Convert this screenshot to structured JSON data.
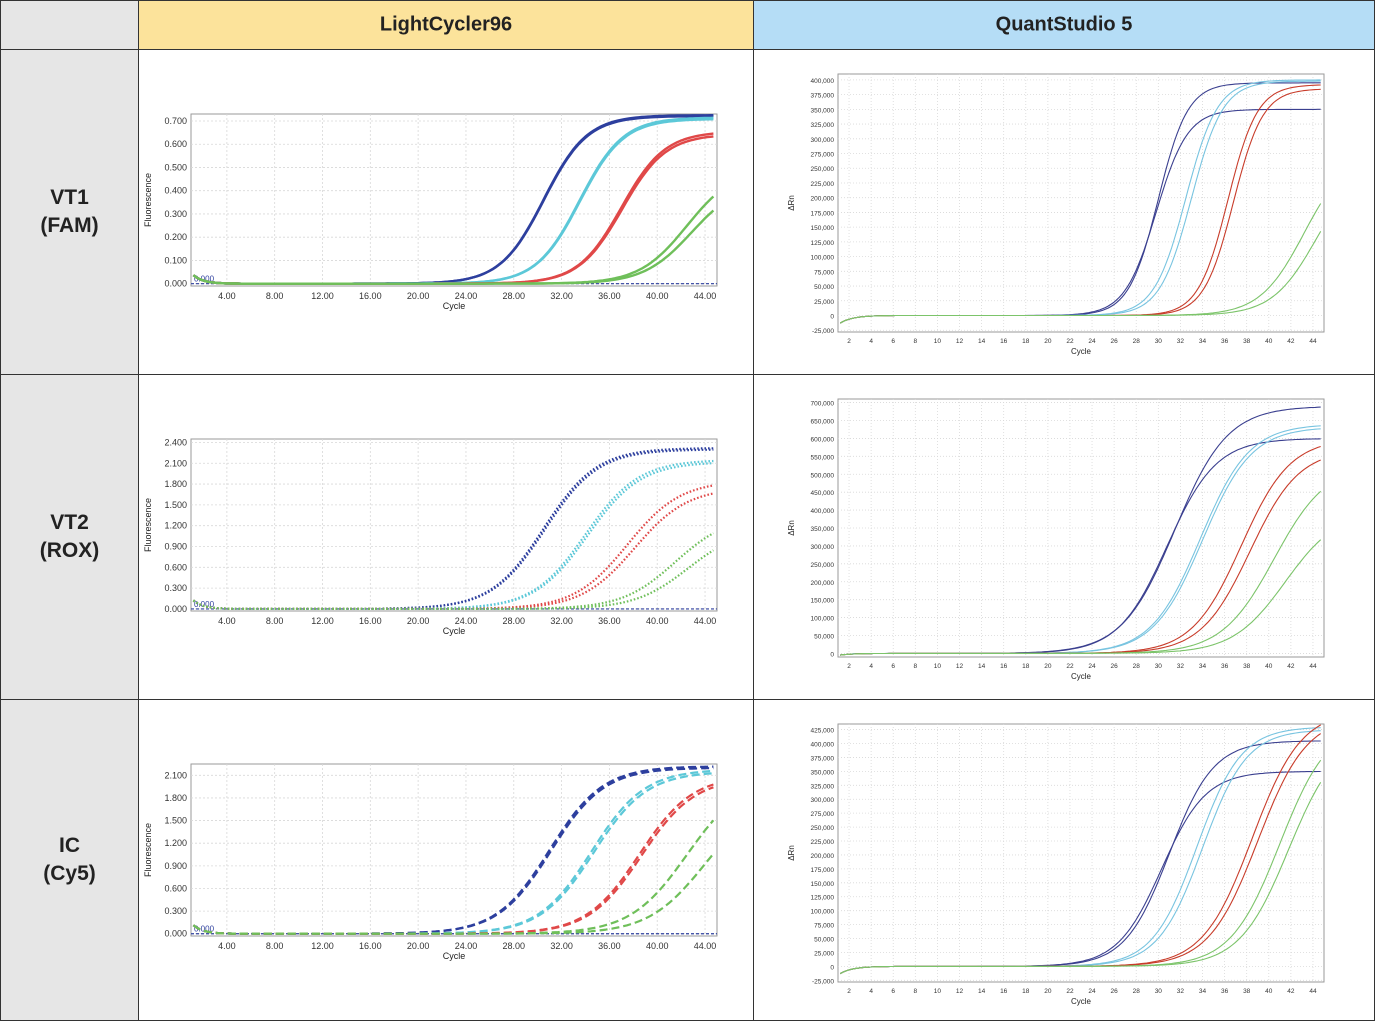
{
  "header": {
    "blank": "",
    "col1": "LightCycler96",
    "col2": "QuantStudio 5"
  },
  "rows": [
    {
      "line1": "VT1",
      "line2": "(FAM)"
    },
    {
      "line1": "VT2",
      "line2": "(ROX)"
    },
    {
      "line1": "IC",
      "line2": "(Cy5)"
    }
  ],
  "colors": {
    "dark_blue": "#2d3f9e",
    "cyan": "#5cc8d8",
    "red": "#e04848",
    "green": "#6fbf5a",
    "qs_navy": "#3a3f8f",
    "qs_lightblue": "#78c4e0",
    "qs_red": "#c83c2a",
    "qs_green": "#7cc46a"
  },
  "chart_data": [
    {
      "id": "lc-vt1",
      "type": "line",
      "style": "solid",
      "ylabel": "Fluorescence",
      "xlabel": "Cycle",
      "xticks": [
        "4.00",
        "8.00",
        "12.00",
        "16.00",
        "20.00",
        "24.00",
        "28.00",
        "32.00",
        "36.00",
        "40.00",
        "44.00"
      ],
      "yticks": [
        "0.000",
        "0.100",
        "0.200",
        "0.300",
        "0.400",
        "0.500",
        "0.600",
        "0.700"
      ],
      "xlim": [
        1,
        45
      ],
      "ylim": [
        -0.01,
        0.73
      ],
      "baseline_label": "0.000",
      "series": [
        {
          "color": "dark_blue",
          "plateau": 0.725,
          "mid": 30.5,
          "k": 0.55,
          "dup": 0.004
        },
        {
          "color": "cyan",
          "plateau": 0.715,
          "mid": 33.5,
          "k": 0.55,
          "dup": 0.006
        },
        {
          "color": "red",
          "plateau": 0.655,
          "mid": 37.0,
          "k": 0.55,
          "dup": 0.012
        },
        {
          "color": "green",
          "plateau": 0.5,
          "mid": 42.5,
          "k": 0.5,
          "dup": 0.06
        }
      ]
    },
    {
      "id": "lc-vt2",
      "type": "line",
      "style": "dotted",
      "ylabel": "Fluorescence",
      "xlabel": "Cycle",
      "xticks": [
        "4.00",
        "8.00",
        "12.00",
        "16.00",
        "20.00",
        "24.00",
        "28.00",
        "32.00",
        "36.00",
        "40.00",
        "44.00"
      ],
      "yticks": [
        "0.000",
        "0.300",
        "0.600",
        "0.900",
        "1.200",
        "1.500",
        "1.800",
        "2.100",
        "2.400"
      ],
      "xlim": [
        1,
        45
      ],
      "ylim": [
        -0.03,
        2.45
      ],
      "baseline_label": "0.000",
      "series": [
        {
          "color": "dark_blue",
          "plateau": 2.32,
          "mid": 30.5,
          "k": 0.45,
          "dup": 0.02
        },
        {
          "color": "cyan",
          "plateau": 2.15,
          "mid": 34.0,
          "k": 0.45,
          "dup": 0.03
        },
        {
          "color": "red",
          "plateau": 1.85,
          "mid": 37.5,
          "k": 0.45,
          "dup": 0.1
        },
        {
          "color": "green",
          "plateau": 1.35,
          "mid": 41.5,
          "k": 0.45,
          "dup": 0.18
        }
      ]
    },
    {
      "id": "lc-ic",
      "type": "line",
      "style": "dashed",
      "ylabel": "Fluorescence",
      "xlabel": "Cycle",
      "xticks": [
        "4.00",
        "8.00",
        "12.00",
        "16.00",
        "20.00",
        "24.00",
        "28.00",
        "32.00",
        "36.00",
        "40.00",
        "44.00"
      ],
      "yticks": [
        "0.000",
        "0.300",
        "0.600",
        "0.900",
        "1.200",
        "1.500",
        "1.800",
        "2.100"
      ],
      "xlim": [
        1,
        45
      ],
      "ylim": [
        -0.03,
        2.25
      ],
      "baseline_label": "0.000",
      "series": [
        {
          "color": "dark_blue",
          "plateau": 2.22,
          "mid": 31.0,
          "k": 0.45,
          "dup": 0.02
        },
        {
          "color": "cyan",
          "plateau": 2.18,
          "mid": 34.5,
          "k": 0.45,
          "dup": 0.03
        },
        {
          "color": "red",
          "plateau": 2.1,
          "mid": 38.5,
          "k": 0.45,
          "dup": 0.03
        },
        {
          "color": "green",
          "plateau": 2.1,
          "mid": 42.5,
          "k": 0.42,
          "dup": 0.25
        }
      ]
    },
    {
      "id": "qs-vt1",
      "type": "line",
      "style": "solid",
      "ylabel": "ΔRn",
      "xlabel": "Cycle",
      "xticks": [
        "2",
        "4",
        "6",
        "8",
        "10",
        "12",
        "14",
        "16",
        "18",
        "20",
        "22",
        "24",
        "26",
        "28",
        "30",
        "32",
        "34",
        "36",
        "38",
        "40",
        "42",
        "44"
      ],
      "yticks": [
        "-25,000",
        "0",
        "25,000",
        "50,000",
        "75,000",
        "100,000",
        "125,000",
        "150,000",
        "175,000",
        "200,000",
        "225,000",
        "250,000",
        "275,000",
        "300,000",
        "325,000",
        "350,000",
        "375,000",
        "400,000"
      ],
      "xlim": [
        1,
        45
      ],
      "ylim": [
        -28000,
        410000
      ],
      "series": [
        {
          "color": "qs_navy",
          "plateau": 395000,
          "mid": 30.0,
          "k": 0.75
        },
        {
          "color": "qs_navy",
          "plateau": 350000,
          "mid": 29.8,
          "k": 0.7
        },
        {
          "color": "qs_lightblue",
          "plateau": 400000,
          "mid": 32.5,
          "k": 0.7
        },
        {
          "color": "qs_lightblue",
          "plateau": 398000,
          "mid": 33.0,
          "k": 0.7
        },
        {
          "color": "qs_red",
          "plateau": 392000,
          "mid": 36.3,
          "k": 0.75
        },
        {
          "color": "qs_red",
          "plateau": 385000,
          "mid": 36.8,
          "k": 0.75
        },
        {
          "color": "qs_green",
          "plateau": 280000,
          "mid": 43.2,
          "k": 0.5
        },
        {
          "color": "qs_green",
          "plateau": 260000,
          "mid": 44.3,
          "k": 0.5
        }
      ]
    },
    {
      "id": "qs-vt2",
      "type": "line",
      "style": "solid",
      "ylabel": "ΔRn",
      "xlabel": "Cycle",
      "xticks": [
        "2",
        "4",
        "6",
        "8",
        "10",
        "12",
        "14",
        "16",
        "18",
        "20",
        "22",
        "24",
        "26",
        "28",
        "30",
        "32",
        "34",
        "36",
        "38",
        "40",
        "42",
        "44"
      ],
      "yticks": [
        "0",
        "50,000",
        "100,000",
        "150,000",
        "200,000",
        "250,000",
        "300,000",
        "350,000",
        "400,000",
        "450,000",
        "500,000",
        "550,000",
        "600,000",
        "650,000",
        "700,000"
      ],
      "xlim": [
        1,
        45
      ],
      "ylim": [
        -10000,
        710000
      ],
      "series": [
        {
          "color": "qs_navy",
          "plateau": 690000,
          "mid": 31.5,
          "k": 0.42
        },
        {
          "color": "qs_navy",
          "plateau": 600000,
          "mid": 30.8,
          "k": 0.45
        },
        {
          "color": "qs_lightblue",
          "plateau": 640000,
          "mid": 33.8,
          "k": 0.45
        },
        {
          "color": "qs_lightblue",
          "plateau": 632000,
          "mid": 34.0,
          "k": 0.45
        },
        {
          "color": "qs_red",
          "plateau": 600000,
          "mid": 37.5,
          "k": 0.45
        },
        {
          "color": "qs_red",
          "plateau": 570000,
          "mid": 38.3,
          "k": 0.45
        },
        {
          "color": "qs_green",
          "plateau": 530000,
          "mid": 40.5,
          "k": 0.42
        },
        {
          "color": "qs_green",
          "plateau": 400000,
          "mid": 41.5,
          "k": 0.42
        }
      ]
    },
    {
      "id": "qs-ic",
      "type": "line",
      "style": "solid",
      "ylabel": "ΔRn",
      "xlabel": "Cycle",
      "xticks": [
        "2",
        "4",
        "6",
        "8",
        "10",
        "12",
        "14",
        "16",
        "18",
        "20",
        "22",
        "24",
        "26",
        "28",
        "30",
        "32",
        "34",
        "36",
        "38",
        "40",
        "42",
        "44"
      ],
      "yticks": [
        "-25,000",
        "0",
        "25,000",
        "50,000",
        "75,000",
        "100,000",
        "125,000",
        "150,000",
        "175,000",
        "200,000",
        "225,000",
        "250,000",
        "275,000",
        "300,000",
        "325,000",
        "350,000",
        "375,000",
        "400,000",
        "425,000"
      ],
      "xlim": [
        1,
        45
      ],
      "ylim": [
        -28000,
        435000
      ],
      "series": [
        {
          "color": "qs_navy",
          "plateau": 405000,
          "mid": 31.0,
          "k": 0.5
        },
        {
          "color": "qs_navy",
          "plateau": 350000,
          "mid": 30.3,
          "k": 0.5
        },
        {
          "color": "qs_lightblue",
          "plateau": 430000,
          "mid": 33.5,
          "k": 0.5
        },
        {
          "color": "qs_lightblue",
          "plateau": 425000,
          "mid": 34.0,
          "k": 0.5
        },
        {
          "color": "qs_red",
          "plateau": 460000,
          "mid": 38.5,
          "k": 0.45
        },
        {
          "color": "qs_red",
          "plateau": 450000,
          "mid": 39.0,
          "k": 0.45
        },
        {
          "color": "qs_green",
          "plateau": 440000,
          "mid": 41.0,
          "k": 0.45
        },
        {
          "color": "qs_green",
          "plateau": 420000,
          "mid": 41.8,
          "k": 0.45
        }
      ]
    }
  ]
}
